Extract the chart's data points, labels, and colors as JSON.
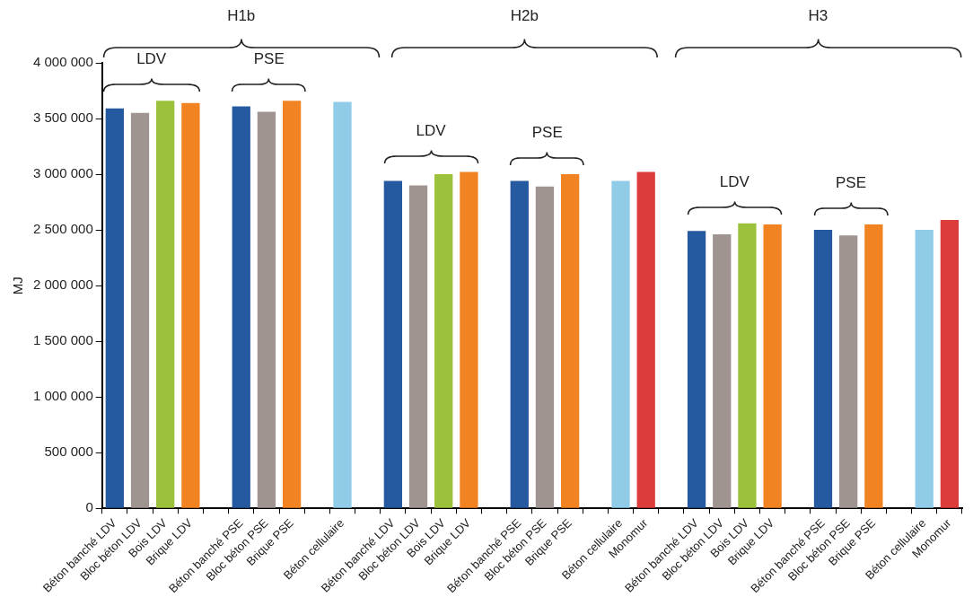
{
  "chart_data": {
    "type": "bar",
    "ylabel": "MJ",
    "categories": [
      "Béton banché LDV",
      "Bloc béton LDV",
      "Bois LDV",
      "Brique LDV",
      null,
      "Béton banché PSE",
      "Bloc béton PSE",
      "Brique PSE",
      null,
      "Béton cellulaire",
      null,
      "Béton banché LDV",
      "Bloc béton LDV",
      "Bois LDV",
      "Brique LDV",
      null,
      "Béton banché PSE",
      "Bloc béton PSE",
      "Brique PSE",
      null,
      "Béton cellulaire",
      "Monomur",
      null,
      "Béton banché LDV",
      "Bloc béton LDV",
      "Bois LDV",
      "Brique LDV",
      null,
      "Béton banché PSE",
      "Bloc béton PSE",
      "Brique PSE",
      null,
      "Béton cellulaire",
      "Monomur"
    ],
    "values": [
      3590000,
      3550000,
      3660000,
      3640000,
      null,
      3610000,
      3560000,
      3660000,
      null,
      3650000,
      null,
      2940000,
      2900000,
      3000000,
      3020000,
      null,
      2940000,
      2890000,
      3000000,
      null,
      2940000,
      3020000,
      null,
      2490000,
      2460000,
      2560000,
      2550000,
      null,
      2500000,
      2450000,
      2550000,
      null,
      2500000,
      2590000
    ],
    "colors": [
      "#2559a0",
      "#a09490",
      "#9cc23c",
      "#f28322",
      "#ffffff",
      "#2559a0",
      "#a09490",
      "#f28322",
      "#ffffff",
      "#90cce8",
      "#ffffff",
      "#2559a0",
      "#a09490",
      "#9cc23c",
      "#f28322",
      "#ffffff",
      "#2559a0",
      "#a09490",
      "#f28322",
      "#ffffff",
      "#90cce8",
      "#dc3d3a",
      "#ffffff",
      "#2559a0",
      "#a09490",
      "#9cc23c",
      "#f28322",
      "#ffffff",
      "#2559a0",
      "#a09490",
      "#f28322",
      "#ffffff",
      "#90cce8",
      "#dc3d3a"
    ],
    "ylim": [
      0,
      4000000
    ],
    "yticks": [
      {
        "value": 0,
        "label": "0"
      },
      {
        "value": 500000,
        "label": "500 000"
      },
      {
        "value": 1000000,
        "label": "1 000 000"
      },
      {
        "value": 1500000,
        "label": "1 500 000"
      },
      {
        "value": 2000000,
        "label": "2 000 000"
      },
      {
        "value": 2500000,
        "label": "2 500 000"
      },
      {
        "value": 3000000,
        "label": "3 000 000"
      },
      {
        "value": 3500000,
        "label": "3 500 000"
      },
      {
        "value": 4000000,
        "label": "4 000 000"
      }
    ],
    "grid": false,
    "legend": false,
    "annotations": [
      "H1b",
      "LDV",
      "PSE",
      "H2b",
      "LDV",
      "PSE",
      "H3",
      "LDV",
      "PSE"
    ]
  }
}
